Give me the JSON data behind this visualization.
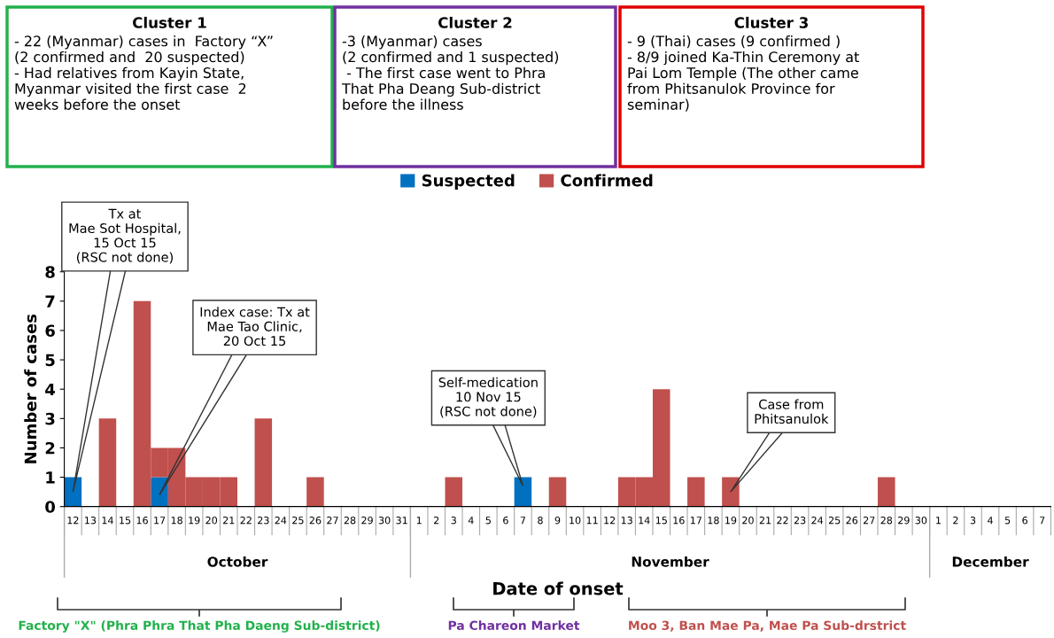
{
  "chart_data": {
    "type": "bar",
    "stacked": true,
    "categories": [
      "12",
      "13",
      "14",
      "15",
      "16",
      "17",
      "18",
      "19",
      "20",
      "21",
      "22",
      "23",
      "24",
      "25",
      "26",
      "27",
      "28",
      "29",
      "30",
      "31",
      "1",
      "2",
      "3",
      "4",
      "5",
      "6",
      "7",
      "8",
      "9",
      "10",
      "11",
      "12",
      "13",
      "14",
      "15",
      "16",
      "17",
      "18",
      "19",
      "20",
      "21",
      "22",
      "23",
      "24",
      "25",
      "26",
      "27",
      "28",
      "29",
      "30",
      "1",
      "2",
      "3",
      "4",
      "5",
      "6",
      "7"
    ],
    "series": [
      {
        "name": "Suspected",
        "color": "#0070c0",
        "values": [
          1,
          0,
          0,
          0,
          0,
          1,
          0,
          0,
          0,
          0,
          0,
          0,
          0,
          0,
          0,
          0,
          0,
          0,
          0,
          0,
          0,
          0,
          0,
          0,
          0,
          0,
          1,
          0,
          0,
          0,
          0,
          0,
          0,
          0,
          0,
          0,
          0,
          0,
          0,
          0,
          0,
          0,
          0,
          0,
          0,
          0,
          0,
          0,
          0,
          0,
          0,
          0,
          0,
          0,
          0,
          0,
          0
        ]
      },
      {
        "name": "Confirmed",
        "color": "#c0504d",
        "values": [
          0,
          0,
          3,
          0,
          7,
          1,
          2,
          1,
          1,
          1,
          0,
          3,
          0,
          0,
          1,
          0,
          0,
          0,
          0,
          0,
          0,
          0,
          1,
          0,
          0,
          0,
          0,
          0,
          1,
          0,
          0,
          0,
          1,
          1,
          4,
          0,
          1,
          0,
          1,
          0,
          0,
          0,
          0,
          0,
          0,
          0,
          0,
          1,
          0,
          0,
          0,
          0,
          0,
          0,
          0,
          0,
          0
        ]
      }
    ],
    "ylim": [
      0,
      8
    ],
    "yticks": [
      0,
      1,
      2,
      3,
      4,
      5,
      6,
      7,
      8
    ],
    "xlabel": "Date of onset",
    "ylabel": "Number of cases",
    "legend": "top",
    "grid": false,
    "annotations": [
      "Cluster 1\n- 22 (Myanmar) cases in  Factory “X”\n(2 confirmed and  20 suspected)\n- Had relatives from Kayin State,\nMyanmar visited the first case  2\nweeks before the onset",
      "Cluster 2\n-3 (Myanmar) cases\n(2 confirmed and 1 suspected)\n - The first case went to Phra\nThat Pha Deang Sub-district\nbefore the illness",
      "Cluster 3\n- 9 (Thai) cases (9 confirmed )\n- 8/9 joined Ka-Thin Ceremony at\nPai Lom Temple (The other came\nfrom Phitsanulok Province for\nseminar)",
      "Tx at\nMae Sot Hospital,\n15 Oct 15\n(RSC not done)",
      "Index case: Tx at\nMae Tao Clinic,\n20 Oct 15",
      "Self-medication\n10 Nov 15\n(RSC not done)",
      "Case from\nPhitsanulok",
      "October",
      "November",
      "December",
      "Factory \"X\" (Phra Phra That Pha Daeng Sub-district)",
      "Pa Chareon Market",
      "Moo 3, Ban Mae Pa, Mae Pa Sub-drstrict"
    ]
  }
}
